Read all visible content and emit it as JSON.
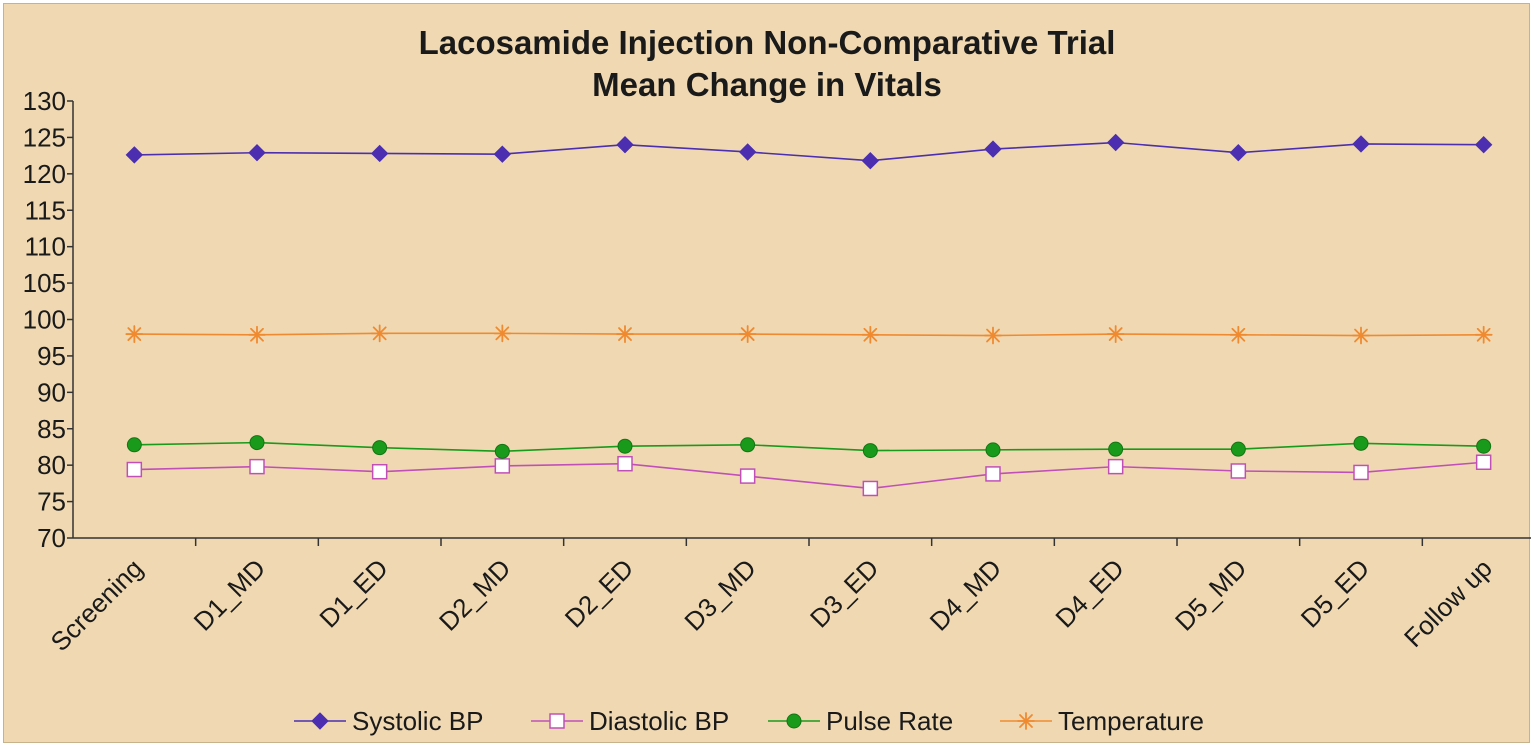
{
  "chart_data": {
    "type": "line",
    "title_lines": [
      "Lacosamide Injection Non-Comparative Trial",
      "Mean Change in Vitals"
    ],
    "categories": [
      "Screening",
      "D1_MD",
      "D1_ED",
      "D2_MD",
      "D2_ED",
      "D3_MD",
      "D3_ED",
      "D4_MD",
      "D4_ED",
      "D5_MD",
      "D5_ED",
      "Follow up"
    ],
    "ylim": [
      70,
      130
    ],
    "yticks": [
      70,
      75,
      80,
      85,
      90,
      95,
      100,
      105,
      110,
      115,
      120,
      125,
      130
    ],
    "grid": false,
    "legend_position": "bottom",
    "series": [
      {
        "name": "Systolic BP",
        "color": "#4b2fb0",
        "marker": "diamond",
        "values": [
          122.6,
          122.9,
          122.8,
          122.7,
          124.0,
          123.0,
          121.8,
          123.4,
          124.3,
          122.9,
          124.1,
          124.0
        ]
      },
      {
        "name": "Diastolic BP",
        "color": "#c050b8",
        "marker": "square-open",
        "values": [
          79.4,
          79.8,
          79.1,
          79.9,
          80.2,
          78.5,
          76.8,
          78.8,
          79.8,
          79.2,
          79.0,
          80.4
        ]
      },
      {
        "name": "Pulse Rate",
        "color": "#1a9a1a",
        "marker": "circle",
        "values": [
          82.8,
          83.1,
          82.4,
          81.9,
          82.6,
          82.8,
          82.0,
          82.1,
          82.2,
          82.2,
          83.0,
          82.6
        ]
      },
      {
        "name": "Temperature",
        "color": "#f08a30",
        "marker": "asterisk",
        "values": [
          98.0,
          97.9,
          98.1,
          98.1,
          98.0,
          98.0,
          97.9,
          97.8,
          98.0,
          97.9,
          97.8,
          97.9
        ]
      }
    ]
  }
}
